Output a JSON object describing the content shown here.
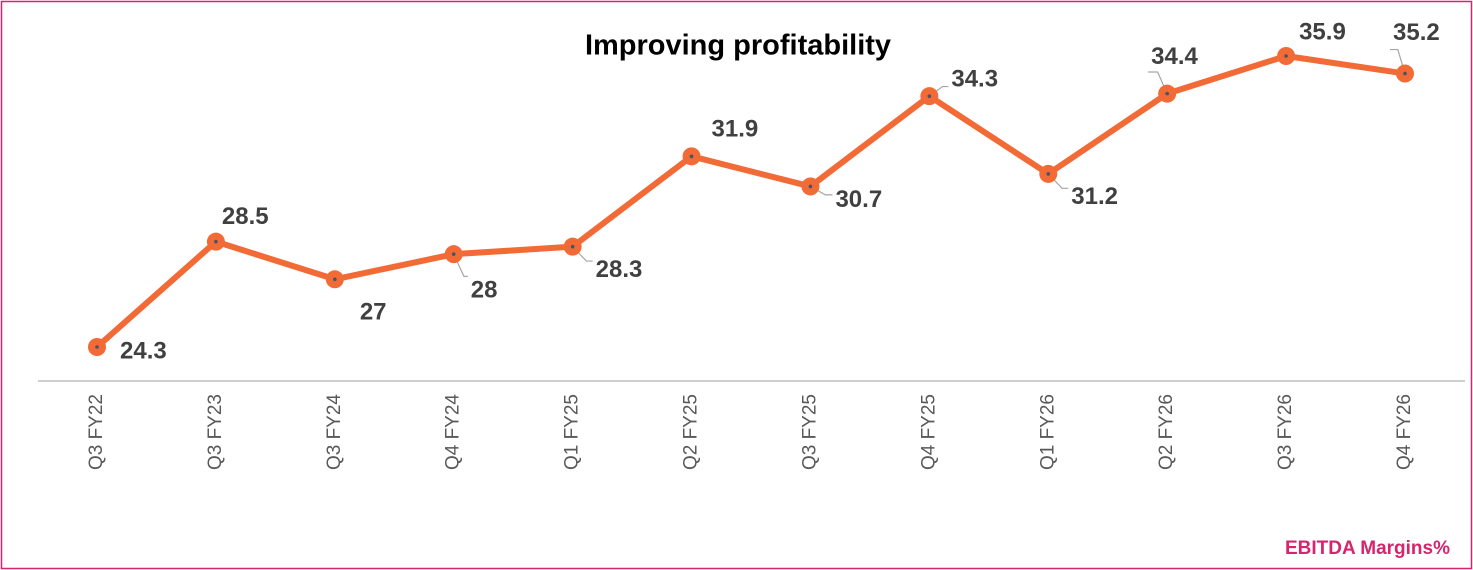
{
  "chart_data": {
    "type": "line",
    "title": "Improving profitability",
    "categories": [
      "Q3 FY22",
      "Q3 FY23",
      "Q3 FY24",
      "Q4 FY24",
      "Q1 FY25",
      "Q2 FY25",
      "Q3 FY25",
      "Q4 FY25",
      "Q1 FY26",
      "Q2 FY26",
      "Q3 FY26",
      "Q4 FY26"
    ],
    "series": [
      {
        "name": "EBITDA Margins%",
        "color": "#f26a35",
        "values": [
          24.3,
          28.5,
          27,
          28,
          28.3,
          31.9,
          30.7,
          34.3,
          31.2,
          34.4,
          35.9,
          35.2
        ]
      }
    ]
  }
}
